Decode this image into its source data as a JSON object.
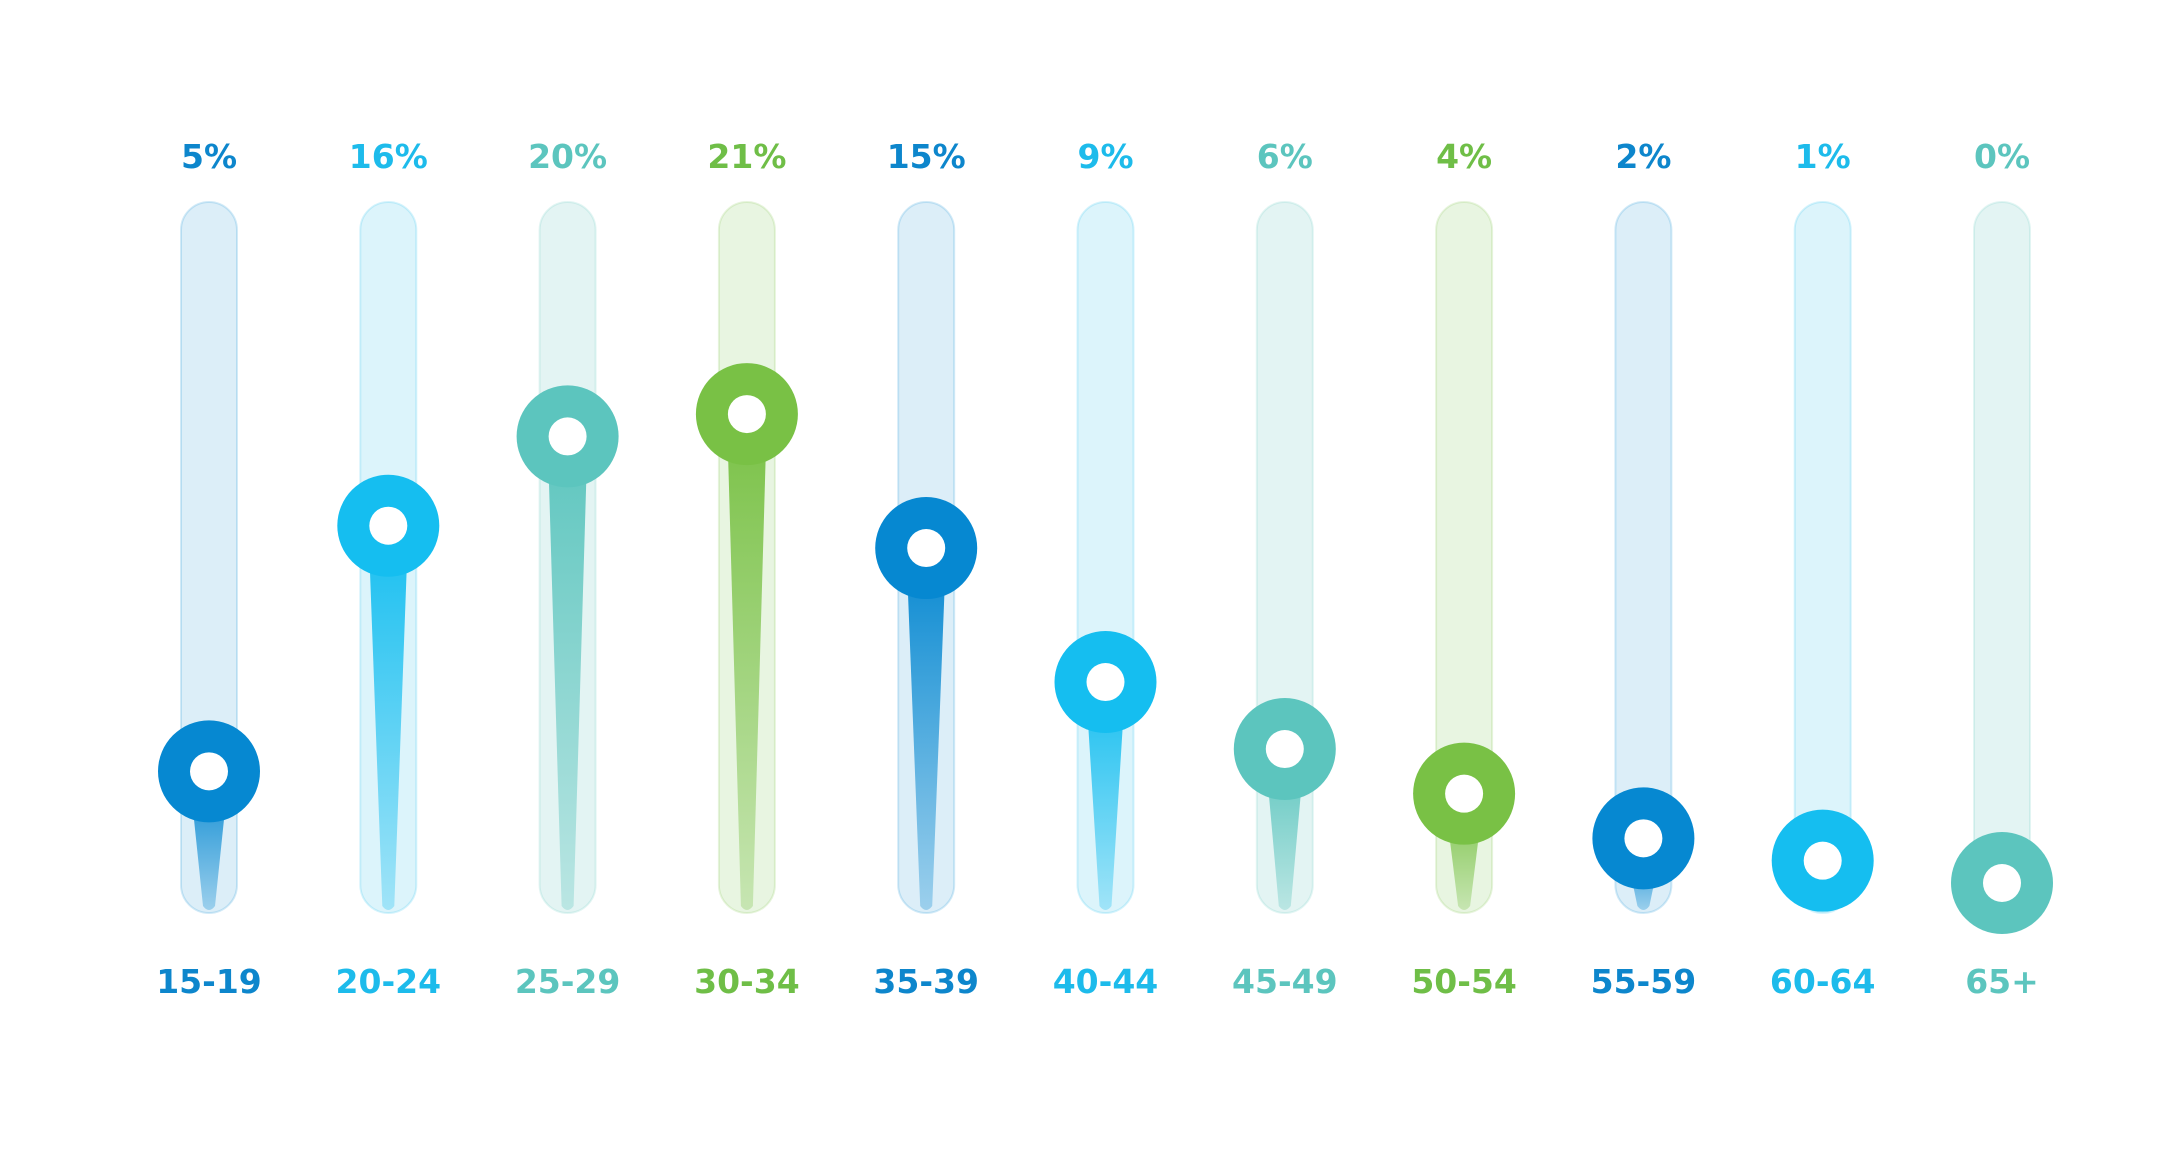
{
  "chart_data": {
    "type": "bar",
    "title": "",
    "xlabel": "",
    "ylabel": "",
    "categories": [
      "15-19",
      "20-24",
      "25-29",
      "30-34",
      "35-39",
      "40-44",
      "45-49",
      "50-54",
      "55-59",
      "60-64",
      "65+"
    ],
    "values": [
      5,
      16,
      20,
      21,
      15,
      9,
      6,
      4,
      2,
      1,
      0
    ],
    "value_labels": [
      "5%",
      "16%",
      "20%",
      "21%",
      "15%",
      "9%",
      "6%",
      "4%",
      "2%",
      "1%",
      "0%"
    ],
    "unit": "%",
    "ylim": [
      0,
      25
    ],
    "grid": false,
    "legend": "none",
    "palette": [
      "#0688D1",
      "#15BEF0",
      "#5CC5BE",
      "#79C145"
    ],
    "track_palette": [
      "#DCEEF8",
      "#DCF4FB",
      "#E3F4F3",
      "#E8F5E1"
    ],
    "label_palette": [
      "#0D86CC",
      "#1DBBEB",
      "#5CC5BE",
      "#6FBE47"
    ]
  }
}
